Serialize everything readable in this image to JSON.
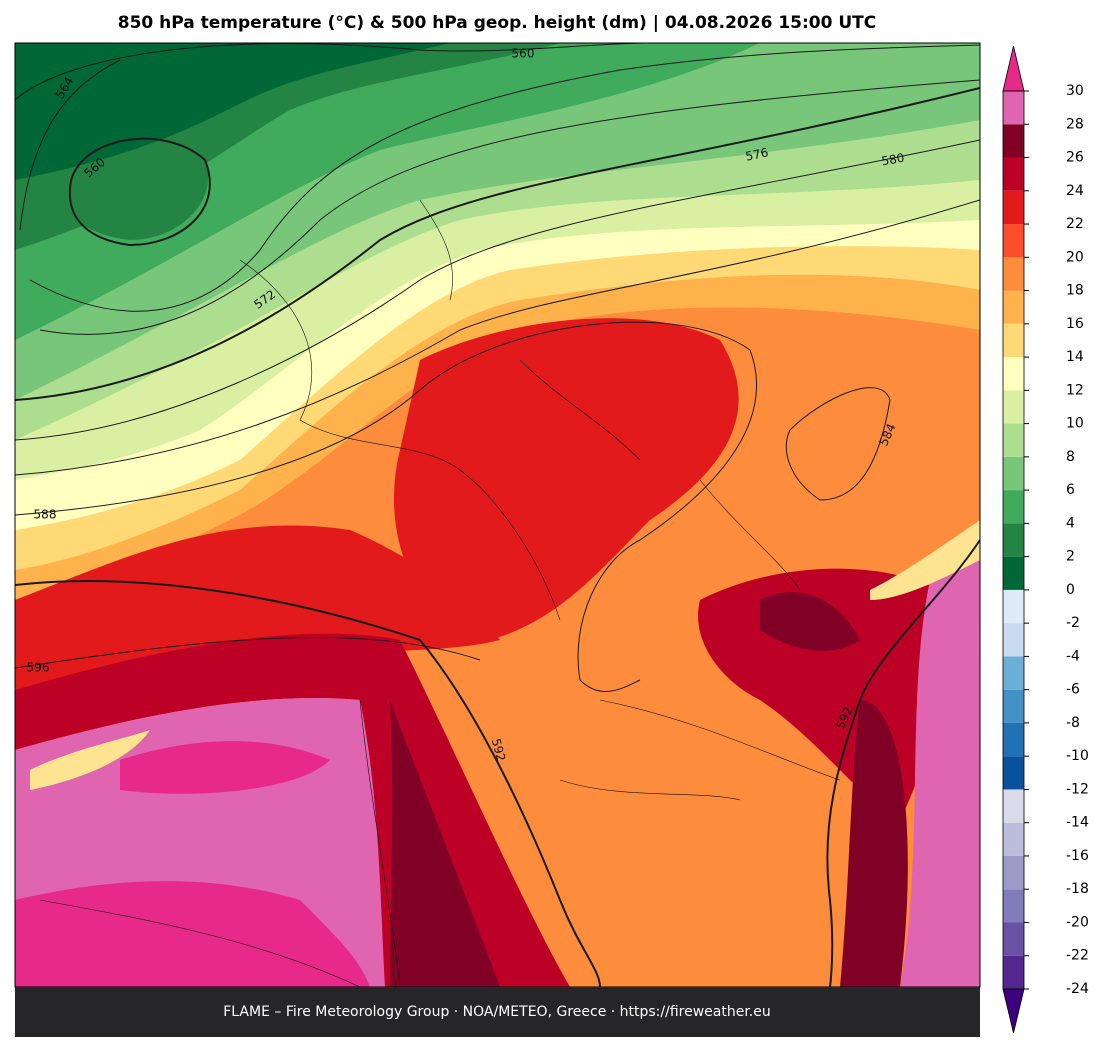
{
  "header": {
    "title": "850 hPa temperature (°C) & 500 hPa geop. height (dm)  |  04.08.2026 15:00 UTC"
  },
  "footer": {
    "text": "FLAME – Fire Meteorology Group · NOA/METEO, Greece · https://fireweather.eu"
  },
  "map": {
    "contour_labels": [
      "560",
      "564",
      "560",
      "576",
      "580",
      "572",
      "588",
      "596",
      "592",
      "584",
      "592"
    ]
  },
  "colorbar": {
    "lim": [
      -24,
      30
    ],
    "ticks": [
      -24,
      -22,
      -20,
      -18,
      -16,
      -14,
      -12,
      -10,
      -8,
      -6,
      -4,
      -2,
      0,
      2,
      4,
      6,
      8,
      10,
      12,
      14,
      16,
      18,
      20,
      22,
      24,
      26,
      28,
      30
    ],
    "colors": [
      "#54278f",
      "#6a51a3",
      "#807dba",
      "#9e9ac8",
      "#bcbddc",
      "#dadaeb",
      "#08519c",
      "#2171b5",
      "#4292c6",
      "#6baed6",
      "#c6dbef",
      "#deebf7",
      "#006837",
      "#238443",
      "#41ab5d",
      "#78c679",
      "#addd8e",
      "#d9f0a3",
      "#ffffbf",
      "#fed976",
      "#feb24c",
      "#fd8d3c",
      "#fc4e2a",
      "#e31a1c",
      "#bd0026",
      "#800026",
      "#df65b0"
    ],
    "over_color": "#e7298a",
    "under_color": "#3f007d"
  }
}
